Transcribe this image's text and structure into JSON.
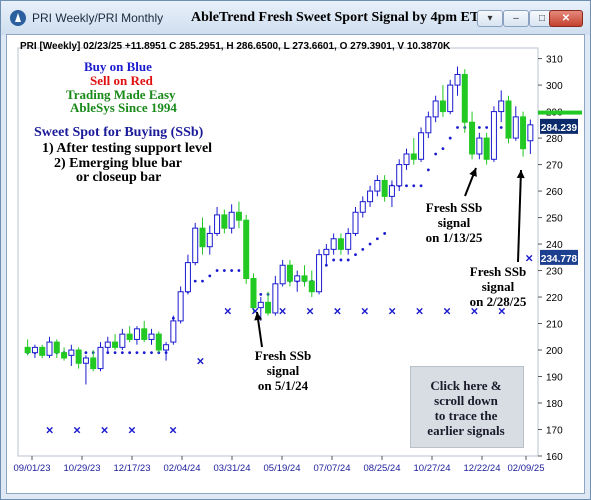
{
  "window": {
    "title": "PRI Weekly/PRI Monthly",
    "chart_title": "AbleTrend Fresh Sweet Sport Signal by 4pm ET",
    "controls": {
      "dropdown": "▾",
      "minimize": "–",
      "maximize": "□",
      "close": "✕"
    }
  },
  "stats_line": "PRI [Weekly] 02/23/25 +11.8951 C 285.2951, H 286.6500, L 273.6601, O 279.3901, V 10.3870K",
  "legend": {
    "buy": "Buy on Blue",
    "sell": "Sell on Red",
    "easy": "Trading Made Easy",
    "since": "AbleSys Since 1994",
    "colors": {
      "buy": "#1b1bcf",
      "sell": "#e01010",
      "green": "#1a8a1a"
    }
  },
  "sweet_spot": {
    "heading": "Sweet Spot for Buying (SSb)",
    "line1": "1) After testing support level",
    "line2": "2) Emerging blue bar",
    "line3": "or closeup bar"
  },
  "annotations": {
    "a1": "Fresh SSb\nsignal\non 5/1/24",
    "a2": "Fresh SSb\nsignal\non 1/13/25",
    "a3": "Fresh SSb\nsignal\non 2/28/25"
  },
  "note_box": "Click here &\nscroll down\nto trace the\nearlier signals",
  "price_tags": {
    "last": "284.239",
    "stop": "234.778",
    "last_color": "#0b2a6b",
    "stop_color": "#1d3f8f"
  },
  "chart_data": {
    "type": "candlestick",
    "y_ticks": [
      "310",
      "300",
      "290",
      "280",
      "270",
      "260",
      "250",
      "240",
      "230",
      "220",
      "210",
      "200",
      "190",
      "180",
      "170",
      "160"
    ],
    "x_ticks": [
      "09/01/23",
      "10/29/23",
      "12/17/23",
      "02/04/24",
      "03/31/24",
      "05/19/24",
      "07/07/24",
      "08/25/24",
      "10/27/24",
      "12/22/24",
      "02/09/25"
    ],
    "ylim": [
      160,
      314
    ],
    "colors": {
      "up": "#1b1bcf",
      "down": "#22c922",
      "stop": "#1b1bcf"
    },
    "candles": [
      [
        201,
        204,
        198,
        199,
        "g"
      ],
      [
        199,
        202,
        197,
        201,
        "b"
      ],
      [
        201,
        202,
        197,
        198,
        "g"
      ],
      [
        198,
        205,
        197,
        203,
        "b"
      ],
      [
        203,
        204,
        197,
        199,
        "g"
      ],
      [
        199,
        201,
        196,
        197,
        "g"
      ],
      [
        198,
        202,
        194,
        200,
        "b"
      ],
      [
        200,
        201,
        193,
        195,
        "g"
      ],
      [
        195,
        198,
        187,
        197,
        "b"
      ],
      [
        197,
        200,
        192,
        193,
        "g"
      ],
      [
        193,
        203,
        192,
        201,
        "b"
      ],
      [
        201,
        205,
        199,
        203,
        "b"
      ],
      [
        203,
        206,
        200,
        201,
        "g"
      ],
      [
        201,
        208,
        200,
        206,
        "b"
      ],
      [
        206,
        209,
        203,
        204,
        "g"
      ],
      [
        204,
        209,
        202,
        208,
        "b"
      ],
      [
        208,
        211,
        203,
        204,
        "g"
      ],
      [
        204,
        208,
        202,
        206,
        "b"
      ],
      [
        206,
        207,
        199,
        200,
        "g"
      ],
      [
        200,
        203,
        196,
        202,
        "b"
      ],
      [
        203,
        213,
        202,
        211,
        "b"
      ],
      [
        211,
        224,
        210,
        222,
        "b"
      ],
      [
        222,
        236,
        221,
        233,
        "b"
      ],
      [
        233,
        248,
        232,
        246,
        "b"
      ],
      [
        246,
        250,
        236,
        239,
        "g"
      ],
      [
        239,
        247,
        236,
        244,
        "b"
      ],
      [
        244,
        254,
        243,
        251,
        "b"
      ],
      [
        251,
        253,
        244,
        246,
        "g"
      ],
      [
        246,
        255,
        244,
        252,
        "b"
      ],
      [
        252,
        256,
        246,
        249,
        "g"
      ],
      [
        249,
        251,
        225,
        227,
        "g"
      ],
      [
        227,
        229,
        214,
        216,
        "g"
      ],
      [
        216,
        220,
        211,
        218,
        "b"
      ],
      [
        218,
        222,
        213,
        214,
        "g"
      ],
      [
        214,
        228,
        213,
        225,
        "b"
      ],
      [
        225,
        234,
        224,
        232,
        "b"
      ],
      [
        232,
        234,
        224,
        226,
        "g"
      ],
      [
        226,
        230,
        222,
        228,
        "b"
      ],
      [
        228,
        232,
        224,
        226,
        "g"
      ],
      [
        226,
        230,
        220,
        222,
        "g"
      ],
      [
        222,
        238,
        221,
        236,
        "b"
      ],
      [
        236,
        240,
        232,
        238,
        "b"
      ],
      [
        238,
        244,
        236,
        242,
        "b"
      ],
      [
        242,
        244,
        236,
        238,
        "g"
      ],
      [
        238,
        246,
        236,
        244,
        "b"
      ],
      [
        244,
        254,
        243,
        252,
        "b"
      ],
      [
        252,
        258,
        250,
        256,
        "b"
      ],
      [
        256,
        262,
        254,
        260,
        "b"
      ],
      [
        260,
        266,
        258,
        264,
        "b"
      ],
      [
        264,
        266,
        256,
        258,
        "g"
      ],
      [
        258,
        264,
        254,
        262,
        "b"
      ],
      [
        262,
        272,
        260,
        270,
        "b"
      ],
      [
        270,
        276,
        268,
        274,
        "b"
      ],
      [
        274,
        280,
        270,
        272,
        "g"
      ],
      [
        272,
        284,
        271,
        282,
        "b"
      ],
      [
        282,
        290,
        280,
        288,
        "b"
      ],
      [
        288,
        296,
        286,
        294,
        "b"
      ],
      [
        294,
        300,
        288,
        290,
        "g"
      ],
      [
        290,
        302,
        289,
        300,
        "b"
      ],
      [
        300,
        307,
        296,
        304,
        "b"
      ],
      [
        304,
        306,
        282,
        286,
        "g"
      ],
      [
        286,
        290,
        272,
        274,
        "g"
      ],
      [
        274,
        282,
        272,
        280,
        "b"
      ],
      [
        280,
        282,
        270,
        272,
        "g"
      ],
      [
        272,
        292,
        271,
        290,
        "b"
      ],
      [
        290,
        298,
        286,
        294,
        "b"
      ],
      [
        294,
        296,
        278,
        280,
        "g"
      ],
      [
        280,
        292,
        279,
        288,
        "b"
      ],
      [
        288,
        290,
        273,
        276,
        "g"
      ],
      [
        279,
        287,
        274,
        285,
        "b"
      ]
    ],
    "stops": [
      [
        0,
        199
      ],
      [
        1,
        199
      ],
      [
        2,
        199
      ],
      [
        3,
        199
      ],
      [
        4,
        199
      ],
      [
        5,
        199
      ],
      [
        6,
        199
      ],
      [
        7,
        199
      ],
      [
        8,
        199
      ],
      [
        9,
        199
      ],
      [
        10,
        199
      ],
      [
        11,
        199
      ],
      [
        12,
        199
      ],
      [
        13,
        199
      ],
      [
        14,
        199
      ],
      [
        15,
        199
      ],
      [
        16,
        199
      ],
      [
        17,
        199
      ],
      [
        18,
        199
      ],
      [
        19,
        199
      ],
      [
        20,
        212
      ],
      [
        21,
        217
      ],
      [
        22,
        222
      ],
      [
        23,
        226
      ],
      [
        24,
        226
      ],
      [
        25,
        228
      ],
      [
        26,
        230
      ],
      [
        27,
        230
      ],
      [
        28,
        230
      ],
      [
        29,
        230
      ],
      [
        32,
        221
      ],
      [
        33,
        221
      ],
      [
        34,
        224
      ],
      [
        35,
        226
      ],
      [
        36,
        226
      ],
      [
        37,
        226
      ],
      [
        38,
        226
      ],
      [
        39,
        226
      ],
      [
        40,
        230
      ],
      [
        41,
        232
      ],
      [
        42,
        234
      ],
      [
        43,
        234
      ],
      [
        44,
        234
      ],
      [
        45,
        236
      ],
      [
        46,
        238
      ],
      [
        47,
        240
      ],
      [
        48,
        242
      ],
      [
        49,
        244
      ],
      [
        50,
        262
      ],
      [
        51,
        262
      ],
      [
        52,
        262
      ],
      [
        53,
        262
      ],
      [
        54,
        262
      ],
      [
        55,
        268
      ],
      [
        56,
        274
      ],
      [
        57,
        276
      ],
      [
        58,
        280
      ],
      [
        59,
        284
      ],
      [
        60,
        284
      ],
      [
        61,
        284
      ],
      [
        62,
        284
      ],
      [
        63,
        284
      ],
      [
        64,
        284
      ],
      [
        65,
        284
      ],
      [
        66,
        284
      ],
      [
        67,
        284
      ],
      [
        68,
        284
      ],
      [
        69,
        284
      ]
    ],
    "x_marks": [
      [
        1,
        170
      ],
      [
        3,
        170
      ],
      [
        5,
        170
      ],
      [
        7,
        170
      ],
      [
        10,
        170
      ],
      [
        12,
        196
      ],
      [
        14,
        215
      ],
      [
        16,
        215
      ],
      [
        18,
        215
      ],
      [
        20,
        215
      ],
      [
        22,
        215
      ],
      [
        24,
        215
      ],
      [
        26,
        215
      ],
      [
        28,
        215
      ],
      [
        30,
        215
      ],
      [
        32,
        215
      ],
      [
        34,
        215
      ],
      [
        36,
        235
      ]
    ]
  }
}
